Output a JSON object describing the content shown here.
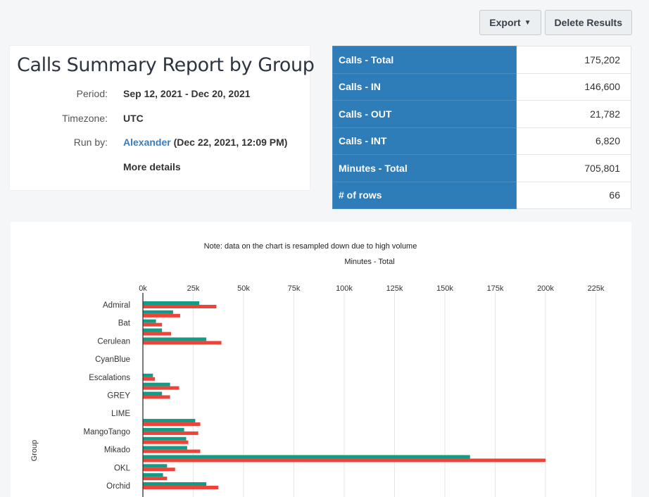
{
  "toolbar": {
    "export_label": "Export",
    "delete_label": "Delete Results"
  },
  "report": {
    "title": "Calls Summary Report by Group",
    "period_label": "Period:",
    "period_value": "Sep 12, 2021 - Dec 20, 2021",
    "timezone_label": "Timezone:",
    "timezone_value": "UTC",
    "run_by_label": "Run by:",
    "run_by_user": "Alexander",
    "run_by_time": "(Dec 22, 2021, 12:09 PM)",
    "more_details": "More details"
  },
  "summary": [
    {
      "label": "Calls - Total",
      "value": "175,202"
    },
    {
      "label": "Calls - IN",
      "value": "146,600"
    },
    {
      "label": "Calls - OUT",
      "value": "21,782"
    },
    {
      "label": "Calls - INT",
      "value": "6,820"
    },
    {
      "label": "Minutes - Total",
      "value": "705,801"
    },
    {
      "label": "# of rows",
      "value": "66"
    }
  ],
  "colors": {
    "series_a": "#129c86",
    "series_b": "#ef4238",
    "header_blue": "#2e7cb8"
  },
  "chart_data": {
    "type": "bar",
    "orientation": "horizontal",
    "note": "Note: data on the chart is resampled down due to high volume",
    "title": "Minutes - Total",
    "ylabel": "Group",
    "xlim": [
      0,
      225000
    ],
    "xticks": [
      0,
      25000,
      50000,
      75000,
      100000,
      125000,
      150000,
      175000,
      200000,
      225000
    ],
    "xtick_labels": [
      "0k",
      "25k",
      "50k",
      "75k",
      "100k",
      "125k",
      "150k",
      "175k",
      "200k",
      "225k"
    ],
    "grid": true,
    "categories": [
      "Admiral",
      "Bat",
      "Cerulean",
      "CyanBlue",
      "Escalations",
      "GREY",
      "LIME",
      "MangoTango",
      "Mikado",
      "OKL",
      "Orchid"
    ],
    "bars": [
      {
        "index": 0.0,
        "series": 0,
        "value": 28000
      },
      {
        "index": 0.0,
        "series": 1,
        "value": 36500
      },
      {
        "index": 0.5,
        "series": 0,
        "value": 15000
      },
      {
        "index": 0.5,
        "series": 1,
        "value": 18500
      },
      {
        "index": 1.0,
        "series": 0,
        "value": 6500
      },
      {
        "index": 1.0,
        "series": 1,
        "value": 9500
      },
      {
        "index": 1.5,
        "series": 0,
        "value": 9500
      },
      {
        "index": 1.5,
        "series": 1,
        "value": 14000
      },
      {
        "index": 2.0,
        "series": 0,
        "value": 31500
      },
      {
        "index": 2.0,
        "series": 1,
        "value": 39000
      },
      {
        "index": 4.0,
        "series": 0,
        "value": 5000
      },
      {
        "index": 4.0,
        "series": 1,
        "value": 6000
      },
      {
        "index": 4.5,
        "series": 0,
        "value": 13500
      },
      {
        "index": 4.5,
        "series": 1,
        "value": 18000
      },
      {
        "index": 5.0,
        "series": 0,
        "value": 9500
      },
      {
        "index": 5.0,
        "series": 1,
        "value": 13500
      },
      {
        "index": 6.5,
        "series": 0,
        "value": 26000
      },
      {
        "index": 6.5,
        "series": 1,
        "value": 28500
      },
      {
        "index": 7.0,
        "series": 0,
        "value": 20500
      },
      {
        "index": 7.0,
        "series": 1,
        "value": 27500
      },
      {
        "index": 7.5,
        "series": 0,
        "value": 21500
      },
      {
        "index": 7.5,
        "series": 1,
        "value": 22500
      },
      {
        "index": 8.0,
        "series": 0,
        "value": 22000
      },
      {
        "index": 8.0,
        "series": 1,
        "value": 28500
      },
      {
        "index": 8.5,
        "series": 0,
        "value": 162500
      },
      {
        "index": 8.5,
        "series": 1,
        "value": 200000
      },
      {
        "index": 9.0,
        "series": 0,
        "value": 12000
      },
      {
        "index": 9.0,
        "series": 1,
        "value": 16000
      },
      {
        "index": 9.5,
        "series": 0,
        "value": 10000
      },
      {
        "index": 9.5,
        "series": 1,
        "value": 12000
      },
      {
        "index": 10.0,
        "series": 0,
        "value": 31500
      },
      {
        "index": 10.0,
        "series": 1,
        "value": 37500
      }
    ]
  }
}
